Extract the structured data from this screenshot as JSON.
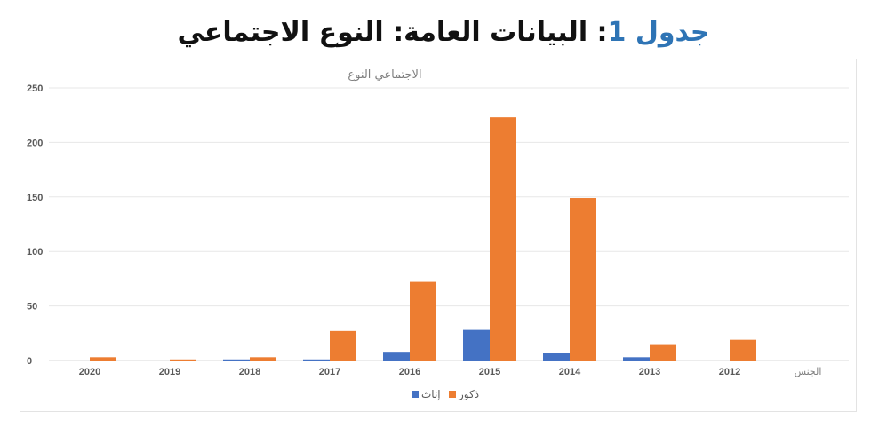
{
  "heading": {
    "word": "جدول",
    "number": "1",
    "rest": ": البيانات العامة: النوع الاجتماعي"
  },
  "chart_data": {
    "type": "bar",
    "title": "الاجتماعي النوع",
    "xlabel": "الجنس",
    "categories": [
      "2020",
      "2019",
      "2018",
      "2017",
      "2016",
      "2015",
      "2014",
      "2013",
      "2012"
    ],
    "ylim": [
      0,
      250
    ],
    "yticks": [
      0,
      50,
      100,
      150,
      200,
      250
    ],
    "grid": true,
    "legend_position": "bottom",
    "series": [
      {
        "name": "إناث",
        "color": "#4472c4",
        "values": [
          0,
          0,
          1,
          1,
          8,
          28,
          7,
          3,
          0
        ]
      },
      {
        "name": "ذكور",
        "color": "#ed7d31",
        "values": [
          3,
          1,
          3,
          27,
          72,
          223,
          149,
          15,
          19
        ]
      }
    ]
  }
}
